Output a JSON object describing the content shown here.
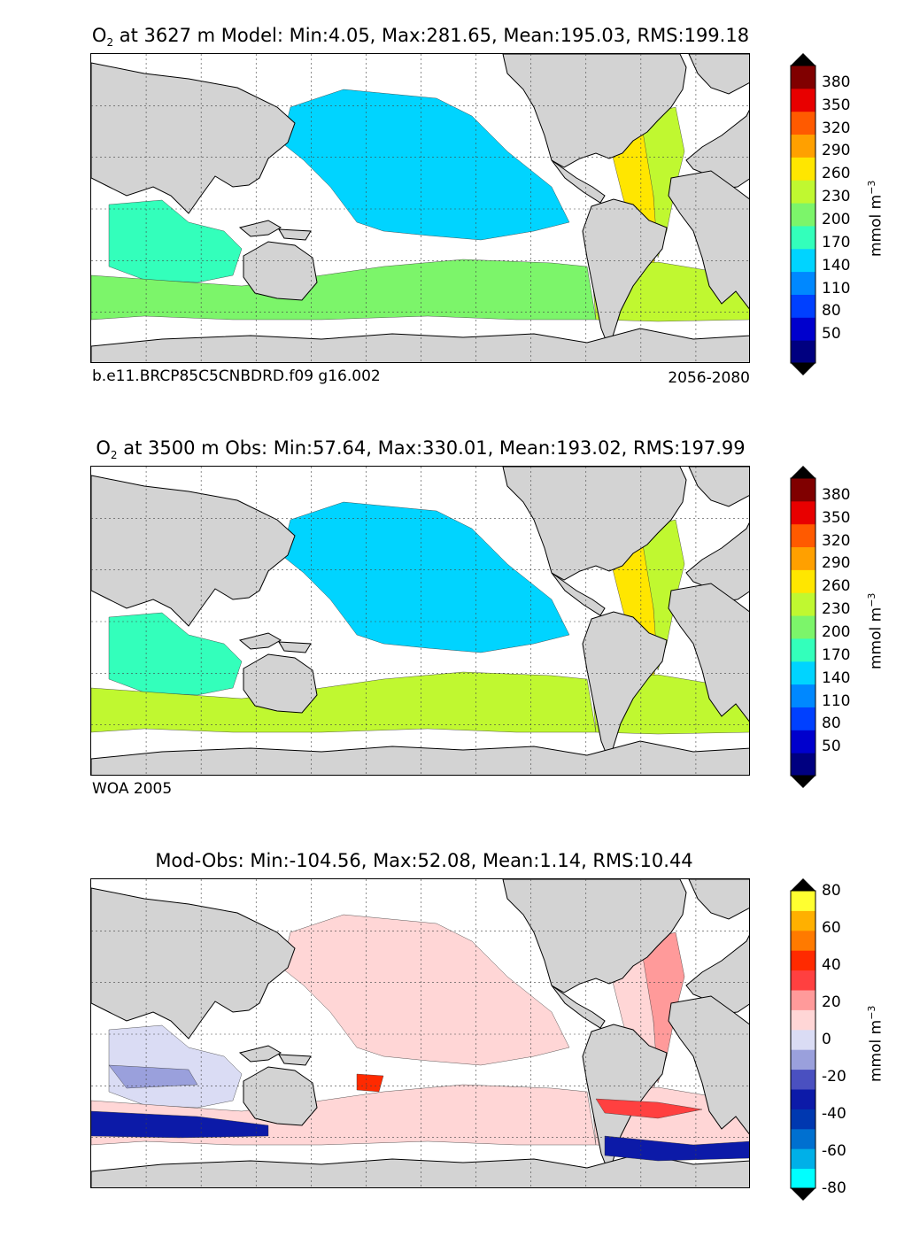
{
  "panels": [
    {
      "title": "O",
      "title_sub": "2",
      "title_rest": " at 3627 m Model: Min:4.05, Max:281.65, Mean:195.03, RMS:199.18",
      "note_left": "b.e11.BRCP85C5CNBDRD.f09 g16.002",
      "note_right": "2056-2080",
      "colorbar": {
        "ticks": [
          "380",
          "350",
          "320",
          "290",
          "260",
          "230",
          "200",
          "170",
          "140",
          "110",
          "80",
          "50"
        ],
        "unit": "mmol m",
        "unit_sup": "−3",
        "colors": [
          "#000080",
          "#0000cd",
          "#0040ff",
          "#0088ff",
          "#00d4ff",
          "#33ffbb",
          "#7cf56a",
          "#c0f830",
          "#ffe600",
          "#ffa000",
          "#ff5a00",
          "#e80000",
          "#800000"
        ]
      },
      "fields": {
        "atlantic": "#ffe600",
        "atlantic2": "#c0f830",
        "pacific": "#00d4ff",
        "indian": "#33ffbb",
        "south": "#7cf56a",
        "east": "#c0f830"
      }
    },
    {
      "title": "O",
      "title_sub": "2",
      "title_rest": " at 3500 m Obs: Min:57.64, Max:330.01, Mean:193.02, RMS:197.99",
      "note_left": "WOA 2005",
      "note_right": "",
      "colorbar": {
        "ticks": [
          "380",
          "350",
          "320",
          "290",
          "260",
          "230",
          "200",
          "170",
          "140",
          "110",
          "80",
          "50"
        ],
        "unit": "mmol m",
        "unit_sup": "−3",
        "colors": [
          "#000080",
          "#0000cd",
          "#0040ff",
          "#0088ff",
          "#00d4ff",
          "#33ffbb",
          "#7cf56a",
          "#c0f830",
          "#ffe600",
          "#ffa000",
          "#ff5a00",
          "#e80000",
          "#800000"
        ]
      },
      "fields": {
        "atlantic": "#ffe600",
        "atlantic2": "#c0f830",
        "pacific": "#00d4ff",
        "indian": "#33ffbb",
        "south": "#c0f830",
        "east": "#c0f830"
      }
    },
    {
      "title": "",
      "title_sub": "",
      "title_rest": "Mod-Obs: Min:-104.56, Max:52.08, Mean:1.14, RMS:10.44",
      "note_left": "",
      "note_right": "",
      "colorbar": {
        "ticks": [
          "80",
          "60",
          "40",
          "20",
          "0",
          "-20",
          "-40",
          "-60",
          "-80"
        ],
        "unit": "mmol m",
        "unit_sup": "−3",
        "colors": [
          "#00ffff",
          "#00b0e8",
          "#0070d0",
          "#0038b0",
          "#0c1aa8",
          "#4a50c0",
          "#9aa0dc",
          "#dadcf4",
          "#ffd6d6",
          "#ff9a9a",
          "#ff4040",
          "#ff2a00",
          "#ff7a00",
          "#ffb000",
          "#ffff30"
        ]
      },
      "fields": {
        "atlantic": "#ffd6d6",
        "atlantic2": "#ff9a9a",
        "pacific": "#ffd6d6",
        "indian": "#dadcf4",
        "south": "#ffd6d6",
        "east": "#ffd6d6"
      }
    }
  ],
  "chart_data": [
    {
      "type": "heatmap",
      "title": "O2 at 3627 m Model: Min:4.05, Max:281.65, Mean:195.03, RMS:199.18",
      "colorbar_ticks": [
        380,
        350,
        320,
        290,
        260,
        230,
        200,
        170,
        140,
        110,
        80,
        50
      ],
      "colorbar_label": "mmol m-3",
      "stats": {
        "min": 4.05,
        "max": 281.65,
        "mean": 195.03,
        "rms": 199.18
      }
    },
    {
      "type": "heatmap",
      "title": "O2 at 3500 m Obs: Min:57.64, Max:330.01, Mean:193.02, RMS:197.99",
      "colorbar_ticks": [
        380,
        350,
        320,
        290,
        260,
        230,
        200,
        170,
        140,
        110,
        80,
        50
      ],
      "colorbar_label": "mmol m-3",
      "stats": {
        "min": 57.64,
        "max": 330.01,
        "mean": 193.02,
        "rms": 197.99
      }
    },
    {
      "type": "heatmap",
      "title": "Mod-Obs: Min:-104.56, Max:52.08, Mean:1.14, RMS:10.44",
      "colorbar_ticks": [
        80,
        60,
        40,
        20,
        0,
        -20,
        -40,
        -60,
        -80
      ],
      "colorbar_label": "mmol m-3",
      "stats": {
        "min": -104.56,
        "max": 52.08,
        "mean": 1.14,
        "rms": 10.44
      }
    }
  ]
}
